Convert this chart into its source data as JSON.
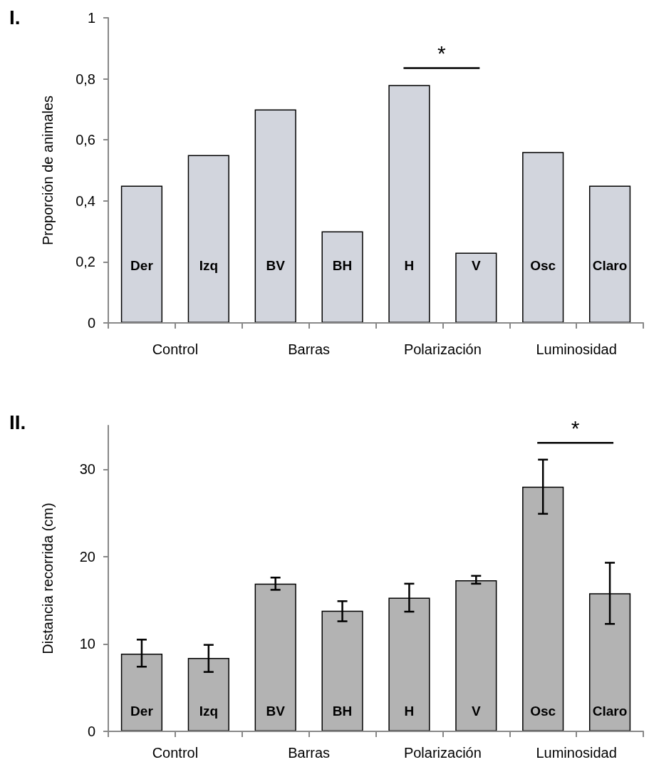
{
  "chart_data": [
    {
      "type": "bar",
      "title": "I.",
      "ylabel": "Proporción de animales",
      "categories": [
        "Der",
        "Izq",
        "BV",
        "BH",
        "H",
        "V",
        "Osc",
        "Claro"
      ],
      "series": [
        {
          "color": "#d2d5dd",
          "values": [
            0.45,
            0.55,
            0.7,
            0.3,
            0.78,
            0.23,
            0.56,
            0.45
          ]
        }
      ],
      "ylim": [
        0,
        1
      ],
      "yticks": [
        0,
        {
          "value": 0.2,
          "label": "0,2"
        },
        {
          "value": 0.4,
          "label": "0,4"
        },
        {
          "value": 0.6,
          "label": "0,6"
        },
        {
          "value": 0.8,
          "label": "0,8"
        },
        1
      ],
      "grid": false,
      "annotations": [
        "Control",
        "Barras",
        "Polarización",
        "Luminosidad",
        "*"
      ]
    },
    {
      "type": "bar",
      "title": "II.",
      "ylabel": "Distancia recorrida (cm)",
      "categories": [
        "Der",
        "Izq",
        "BV",
        "BH",
        "H",
        "V",
        "Osc",
        "Claro"
      ],
      "series": [
        {
          "color": "#b3b3b3",
          "values": [
            8.9,
            8.4,
            16.9,
            13.8,
            15.3,
            17.3,
            28.0,
            15.8
          ],
          "errors": [
            [
              7.4,
              10.5
            ],
            [
              6.8,
              9.9
            ],
            [
              16.2,
              17.6
            ],
            [
              12.6,
              14.9
            ],
            [
              13.7,
              16.9
            ],
            [
              16.9,
              17.8
            ],
            [
              24.9,
              31.1
            ],
            [
              12.3,
              19.3
            ]
          ]
        }
      ],
      "ylim": [
        0,
        35
      ],
      "yticks": [
        0,
        10,
        20,
        30
      ],
      "grid": false,
      "annotations": [
        "Control",
        "Barras",
        "Polarización",
        "Luminosidad",
        "*"
      ]
    }
  ]
}
